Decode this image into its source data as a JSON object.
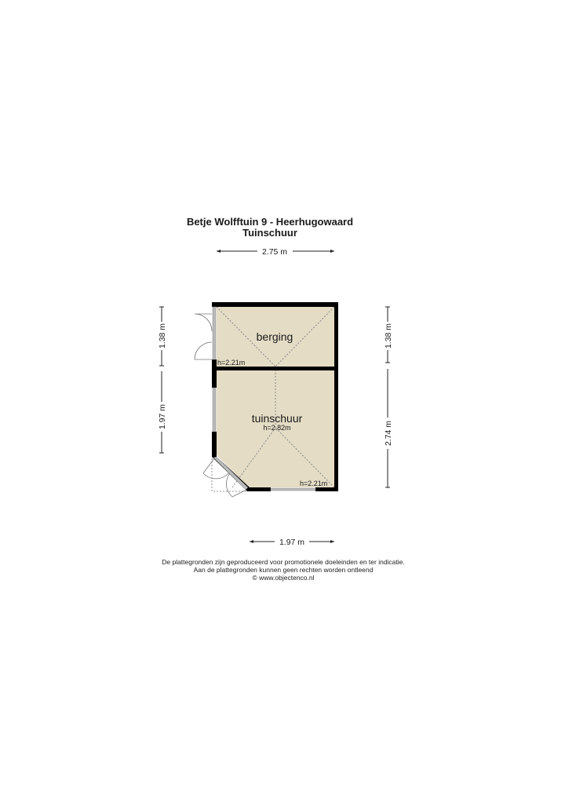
{
  "title": {
    "line1": "Betje Wolfftuin 9 - Heerhugowaard",
    "line2": "Tuinschuur"
  },
  "rooms": [
    {
      "name": "berging",
      "height": "h=2.21m"
    },
    {
      "name": "tuinschuur",
      "height": "h=2.82m",
      "height_corner": "h=2.21m"
    }
  ],
  "dimensions": {
    "top": "2.75 m",
    "bottom": "1.97 m",
    "left_upper": "1.38 m",
    "left_lower": "1.97 m",
    "right_upper": "1.38 m",
    "right_lower": "2.74 m"
  },
  "colors": {
    "floor": "#e4dcc5",
    "wall": "#000000",
    "window": "#b9b9b9"
  },
  "disclaimer": {
    "line1": "De plattegronden zijn geproduceerd voor promotionele doeleinden en ter indicatie.",
    "line2": "Aan de plattegronden kunnen geen rechten worden ontleend",
    "line3": "© www.objectenco.nl"
  }
}
